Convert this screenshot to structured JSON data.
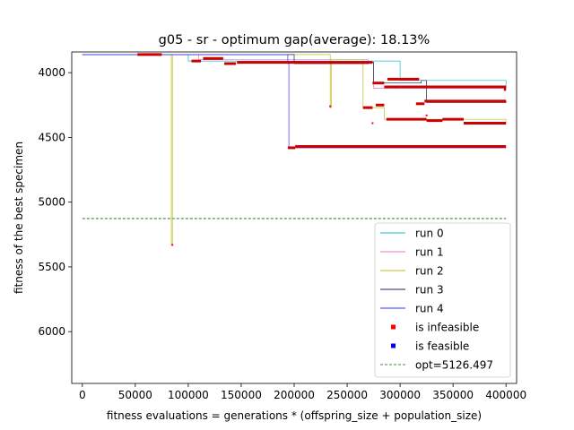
{
  "chart_data": {
    "type": "line",
    "title": "g05  -  sr  -  optimum gap(average): 18.13%",
    "xlabel": "fitness evaluations = generations * (offspring_size + population_size)",
    "ylabel": "fitness of the best specimen",
    "xlim": [
      -10000,
      410000
    ],
    "ylim": [
      6400,
      3840
    ],
    "y_inverted": true,
    "grid": false,
    "legend_position": "lower-right",
    "x_ticks": [
      0,
      50000,
      100000,
      150000,
      200000,
      250000,
      300000,
      350000,
      400000
    ],
    "x_tick_labels": [
      "0",
      "50000",
      "100000",
      "150000",
      "200000",
      "250000",
      "300000",
      "350000",
      "400000"
    ],
    "y_ticks": [
      4000,
      4500,
      5000,
      5500,
      6000
    ],
    "y_tick_labels": [
      "4000",
      "4500",
      "5000",
      "5500",
      "6000"
    ],
    "series": [
      {
        "name": "run 0",
        "color": "#17becf",
        "x": [
          0,
          95000,
          100000,
          295000,
          300000,
          400000
        ],
        "y": [
          3860,
          3860,
          3910,
          3910,
          4060,
          4120
        ]
      },
      {
        "name": "run 1",
        "color": "#e377c2",
        "x": [
          0,
          100000,
          110000,
          270000,
          275000,
          400000
        ],
        "y": [
          3860,
          3860,
          3900,
          3920,
          4120,
          4120
        ]
      },
      {
        "name": "run 2",
        "color": "#bcbd22",
        "x": [
          0,
          83000,
          84000,
          85000,
          230000,
          233000,
          234000,
          235000,
          265000,
          285000,
          300000,
          400000
        ],
        "y": [
          3860,
          3860,
          5330,
          3860,
          3860,
          3860,
          4270,
          3900,
          4270,
          4360,
          4360,
          4390
        ]
      },
      {
        "name": "run 3",
        "color": "#1f1f66",
        "x": [
          0,
          200000,
          270000,
          275000,
          320000,
          325000,
          400000
        ],
        "y": [
          3860,
          3930,
          3920,
          4080,
          4060,
          4230,
          4220
        ]
      },
      {
        "name": "run 4",
        "color": "#3333ff",
        "x": [
          0,
          194000,
          195000,
          400000
        ],
        "y": [
          3860,
          3930,
          4580,
          4580
        ]
      }
    ],
    "red_markers": [
      {
        "x": [
          52000,
          75000
        ],
        "y": 3860
      },
      {
        "x": [
          103000,
          112000
        ],
        "y": 3910
      },
      {
        "x": [
          114000,
          133000
        ],
        "y": 3890
      },
      {
        "x": [
          134000,
          145000
        ],
        "y": 3930
      },
      {
        "x": [
          146000,
          274000
        ],
        "y": 3920
      },
      {
        "x": [
          194000,
          201000
        ],
        "y": 4580
      },
      {
        "x": [
          201000,
          400000
        ],
        "y": 4570
      },
      {
        "x": [
          265000,
          274000
        ],
        "y": 4270
      },
      {
        "x": [
          274000,
          285000
        ],
        "y": 4080
      },
      {
        "x": [
          277000,
          285000
        ],
        "y": 4250
      },
      {
        "x": [
          285000,
          300000
        ],
        "y": 4110
      },
      {
        "x": [
          287000,
          325000
        ],
        "y": 4360
      },
      {
        "x": [
          288000,
          318000
        ],
        "y": 4050
      },
      {
        "x": [
          300000,
          400000
        ],
        "y": 4110
      },
      {
        "x": [
          315000,
          323000
        ],
        "y": 4240
      },
      {
        "x": [
          323000,
          400000
        ],
        "y": 4220
      },
      {
        "x": [
          325000,
          340000
        ],
        "y": 4370
      },
      {
        "x": [
          340000,
          360000
        ],
        "y": 4360
      },
      {
        "x": [
          360000,
          400000
        ],
        "y": 4390
      },
      {
        "x": [
          398000,
          400000
        ],
        "y": 4130
      }
    ],
    "red_points": [
      {
        "x": 85000,
        "y": 5330
      },
      {
        "x": 234000,
        "y": 4260
      },
      {
        "x": 274000,
        "y": 4390
      },
      {
        "x": 325000,
        "y": 4330
      }
    ],
    "reference_line": {
      "label": "opt=5126.497",
      "value": 5126.497,
      "color": "#006400",
      "x": [
        0,
        400000
      ]
    },
    "legend": [
      {
        "label": "run 0",
        "kind": "line",
        "color": "#17becf"
      },
      {
        "label": "run 1",
        "kind": "line",
        "color": "#e377c2"
      },
      {
        "label": "run 2",
        "kind": "line",
        "color": "#bcbd22"
      },
      {
        "label": "run 3",
        "kind": "line",
        "color": "#1f1f66"
      },
      {
        "label": "run 4",
        "kind": "line",
        "color": "#3333ff"
      },
      {
        "label": "is infeasible",
        "kind": "marker",
        "color": "#ff0000"
      },
      {
        "label": "is feasible",
        "kind": "marker",
        "color": "#0000ff"
      },
      {
        "label": "opt=5126.497",
        "kind": "dashed",
        "color": "#006400"
      }
    ]
  }
}
